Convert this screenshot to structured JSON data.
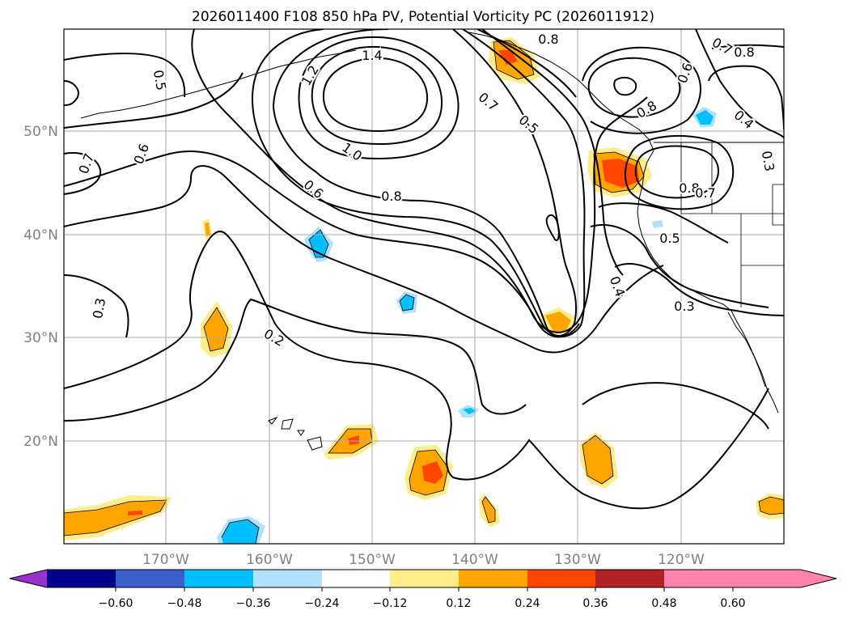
{
  "title": "2026011400 F108 850 hPa PV, Potential Vorticity PC (2026011912)",
  "map": {
    "lat_labels": [
      "50°N",
      "40°N",
      "30°N",
      "20°N"
    ],
    "lon_labels": [
      "170°W",
      "160°W",
      "150°W",
      "140°W",
      "130°W",
      "120°W"
    ],
    "contour_labels": [
      "1.4",
      "1.2",
      "1.0",
      "0.8",
      "0.8",
      "0.8",
      "0.8",
      "0.8",
      "0.7",
      "0.7",
      "0.7",
      "0.7",
      "0.6",
      "0.6",
      "0.6",
      "0.5",
      "0.5",
      "0.5",
      "0.4",
      "0.4",
      "0.3",
      "0.3",
      "0.3",
      "0.2"
    ]
  },
  "colorbar": {
    "ticks": [
      "−0.60",
      "−0.48",
      "−0.36",
      "−0.24",
      "−0.12",
      "0.12",
      "0.24",
      "0.36",
      "0.48",
      "0.60"
    ],
    "colors": [
      "#9932cc",
      "#00008b",
      "#3a5fcd",
      "#00bfff",
      "#b0e2ff",
      "#ffffff",
      "#ffec8b",
      "#ffa500",
      "#ff4500",
      "#b22222",
      "#ff82ab"
    ]
  }
}
